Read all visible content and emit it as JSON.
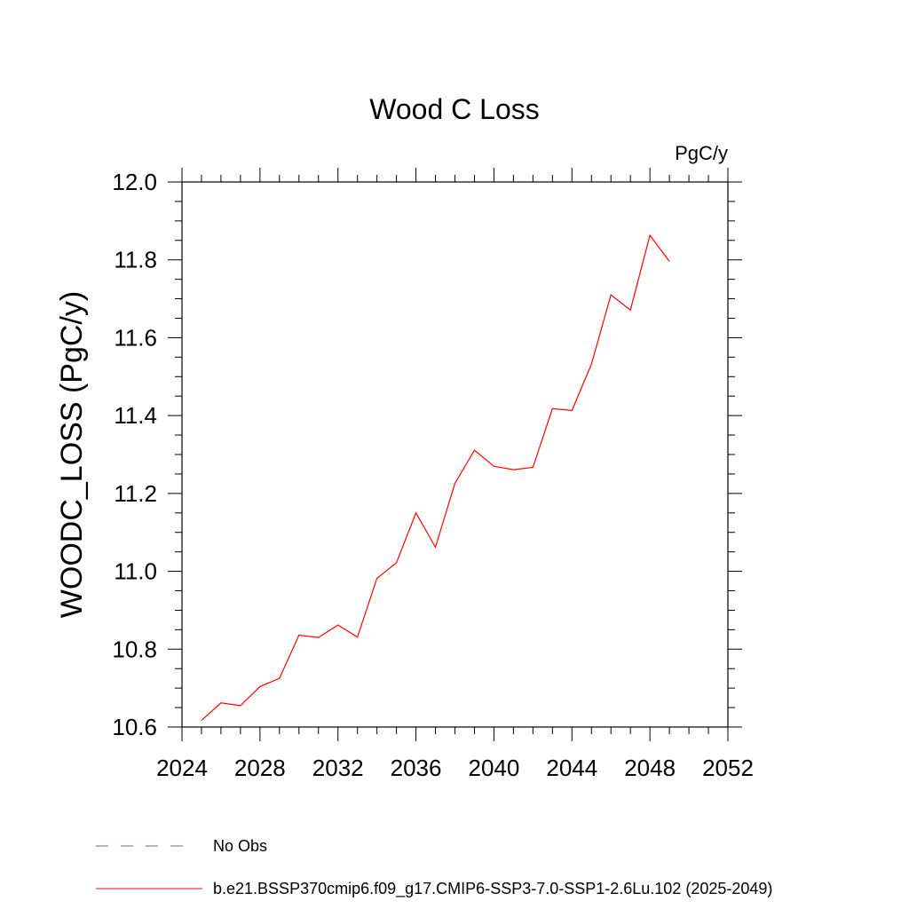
{
  "chart_data": {
    "type": "line",
    "title": "Wood C Loss",
    "unit_label": "PgC/y",
    "xlabel": "",
    "ylabel": "WOODC_LOSS  (PgC/y)",
    "xlim": [
      2024,
      2052
    ],
    "ylim": [
      10.6,
      12.0
    ],
    "x_ticks": [
      "2024",
      "2028",
      "2032",
      "2036",
      "2040",
      "2044",
      "2048",
      "2052"
    ],
    "y_ticks": [
      "10.6",
      "10.8",
      "11.0",
      "11.2",
      "11.4",
      "11.6",
      "11.8",
      "12.0"
    ],
    "grid": false,
    "legend_position": "bottom",
    "series": [
      {
        "name": "b.e21.BSSP370cmip6.f09_g17.CMIP6-SSP3-7.0-SSP1-2.6Lu.102 (2025-2049)",
        "color": "#ff0000",
        "x": [
          2025,
          2026,
          2027,
          2028,
          2029,
          2030,
          2031,
          2032,
          2033,
          2034,
          2035,
          2036,
          2037,
          2038,
          2039,
          2040,
          2041,
          2042,
          2043,
          2044,
          2045,
          2046,
          2047,
          2048,
          2049
        ],
        "values": [
          10.617,
          10.662,
          10.655,
          10.704,
          10.725,
          10.836,
          10.83,
          10.862,
          10.831,
          10.982,
          11.022,
          11.15,
          11.062,
          11.226,
          11.311,
          11.27,
          11.261,
          11.267,
          11.418,
          11.413,
          11.532,
          11.71,
          11.671,
          11.863,
          11.796
        ]
      }
    ],
    "legend": [
      {
        "label": "No Obs",
        "style": "dashed",
        "color": "#6a5acd"
      },
      {
        "label": "b.e21.BSSP370cmip6.f09_g17.CMIP6-SSP3-7.0-SSP1-2.6Lu.102 (2025-2049)",
        "style": "solid",
        "color": "#ff0000"
      }
    ]
  }
}
